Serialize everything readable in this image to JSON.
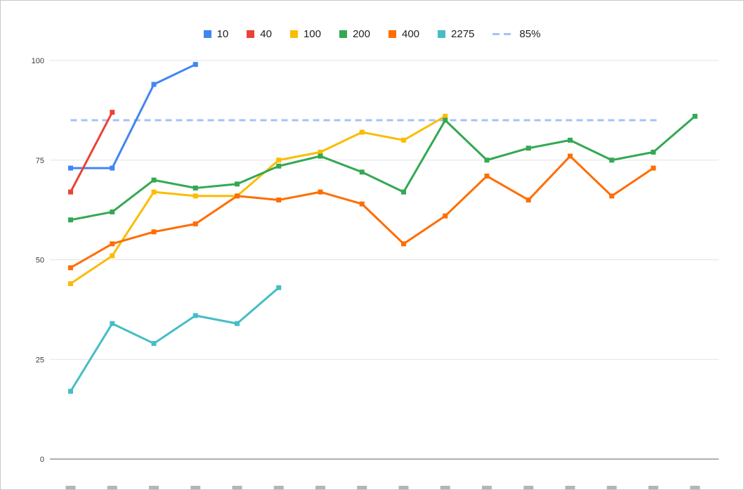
{
  "page": {
    "background": "#ffffff",
    "border_color": "#c9c9c9"
  },
  "chart_data": {
    "type": "line",
    "title": "",
    "xlabel": "",
    "ylabel": "",
    "x": [
      1,
      2,
      3,
      4,
      5,
      6,
      7,
      8,
      9,
      10,
      11,
      12,
      13,
      14,
      15,
      16
    ],
    "x_axis_labels_visible": false,
    "yticks": [
      0,
      25,
      50,
      75,
      100
    ],
    "ylim": [
      0,
      100
    ],
    "grid": "horizontal",
    "legend_position": "top",
    "marker_shape": "square",
    "series": [
      {
        "name": "10",
        "color": "#4285F4",
        "values": [
          73,
          73,
          94,
          99,
          null,
          null,
          null,
          null,
          null,
          null,
          null,
          null,
          null,
          null,
          null,
          null
        ]
      },
      {
        "name": "40",
        "color": "#EA4335",
        "values": [
          67,
          87,
          null,
          null,
          null,
          null,
          null,
          null,
          null,
          null,
          null,
          null,
          null,
          null,
          null,
          null
        ]
      },
      {
        "name": "100",
        "color": "#FBBC04",
        "values": [
          44,
          51,
          67,
          66,
          66,
          75,
          77,
          82,
          80,
          86,
          null,
          null,
          null,
          null,
          null,
          null
        ]
      },
      {
        "name": "200",
        "color": "#34A853",
        "values": [
          60,
          62,
          70,
          68,
          69,
          73.5,
          76,
          72,
          67,
          85,
          75,
          78,
          80,
          75,
          77,
          86
        ]
      },
      {
        "name": "400",
        "color": "#FF6D01",
        "values": [
          48,
          54,
          57,
          59,
          66,
          65,
          67,
          64,
          54,
          61,
          71,
          65,
          76,
          66,
          73,
          null
        ]
      },
      {
        "name": "2275",
        "color": "#46BDC6",
        "values": [
          17,
          34,
          29,
          36,
          34,
          43,
          null,
          null,
          null,
          null,
          null,
          null,
          null,
          null,
          null,
          null
        ]
      }
    ],
    "reference_line": {
      "name": "85%",
      "value": 85,
      "color": "#A4C2F4",
      "style": "dashed"
    }
  },
  "axis": {
    "tick_label_color": "#3c3c3c",
    "gridline_color": "#e3e3e3",
    "baseline_color": "#616161"
  }
}
